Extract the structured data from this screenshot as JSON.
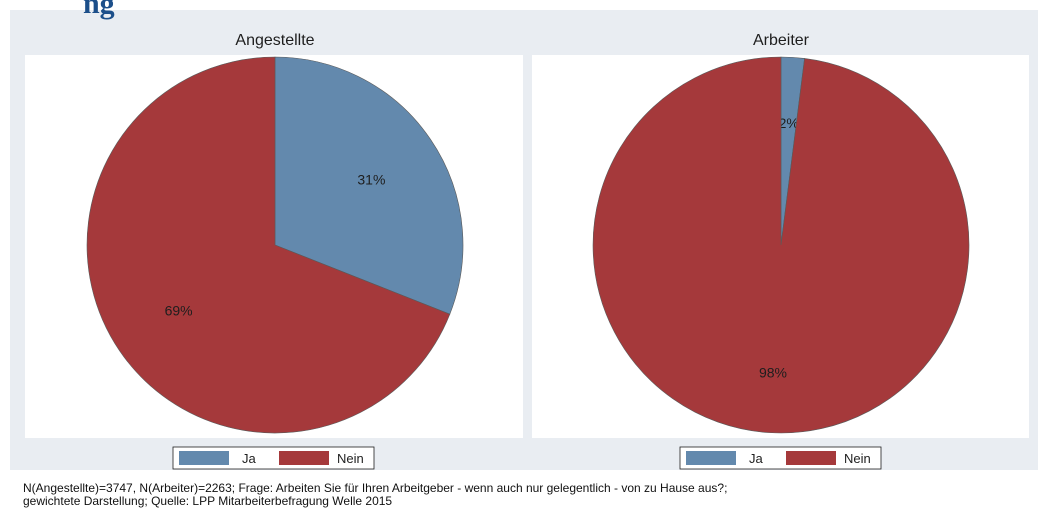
{
  "header": {
    "partial_title": "ng"
  },
  "colors": {
    "ja": "#6389ad",
    "nein": "#a5393b",
    "outer_background": "#e9edf2",
    "plot_background": "#ffffff"
  },
  "chart_data": [
    {
      "type": "pie",
      "title": "Angestellte",
      "categories": [
        "Ja",
        "Nein"
      ],
      "values": [
        31,
        69
      ],
      "labels": [
        "31%",
        "69%"
      ],
      "legend": {
        "entries": [
          "Ja",
          "Nein"
        ],
        "placement": "bottom"
      }
    },
    {
      "type": "pie",
      "title": "Arbeiter",
      "categories": [
        "Ja",
        "Nein"
      ],
      "values": [
        2,
        98
      ],
      "labels": [
        "2%",
        "98%"
      ],
      "legend": {
        "entries": [
          "Ja",
          "Nein"
        ],
        "placement": "bottom"
      }
    }
  ],
  "footnote": {
    "line1": "N(Angestellte)=3747, N(Arbeiter)=2263; Frage: Arbeiten Sie für Ihren Arbeitgeber - wenn auch nur gelegentlich - von zu Hause aus?;",
    "line2": "gewichtete Darstellung; Quelle: LPP Mitarbeiterbefragung Welle 2015"
  }
}
